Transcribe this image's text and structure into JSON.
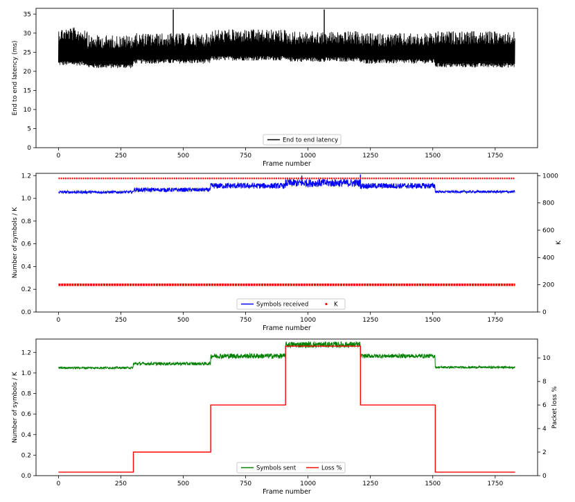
{
  "chart_data": [
    {
      "type": "line",
      "title": "",
      "xlabel": "Frame number",
      "ylabel": "End to end latency (ms)",
      "xlim": [
        -90,
        1920
      ],
      "ylim": [
        0,
        36.5
      ],
      "x_ticks": [
        0,
        250,
        500,
        750,
        1000,
        1250,
        1500,
        1750
      ],
      "y_ticks": [
        0,
        5,
        10,
        15,
        20,
        25,
        30,
        35
      ],
      "legend_position": "bottom-center",
      "series": [
        {
          "name": "End to end latency",
          "color": "#000000",
          "segments": [
            {
              "from": 0,
              "to": 115,
              "low": 21.5,
              "high": 31.5
            },
            {
              "from": 115,
              "to": 300,
              "low": 20.8,
              "high": 29.5
            },
            {
              "from": 300,
              "to": 610,
              "low": 22.0,
              "high": 30.0
            },
            {
              "from": 610,
              "to": 910,
              "low": 22.8,
              "high": 31.0
            },
            {
              "from": 910,
              "to": 1210,
              "low": 22.5,
              "high": 30.5
            },
            {
              "from": 1210,
              "to": 1510,
              "low": 22.0,
              "high": 30.0
            },
            {
              "from": 1510,
              "to": 1830,
              "low": 21.0,
              "high": 30.5
            }
          ],
          "spikes": [
            {
              "frame": 460,
              "value": 36.2
            },
            {
              "frame": 1065,
              "value": 36.2
            }
          ]
        }
      ]
    },
    {
      "type": "line",
      "title": "",
      "xlabel": "Frame number",
      "ylabel": "Number of symbols / K",
      "ylabel_right": "K",
      "xlim": [
        -90,
        1920
      ],
      "ylim": [
        0,
        1.22
      ],
      "ylim_right": [
        0,
        1017
      ],
      "x_ticks": [
        0,
        250,
        500,
        750,
        1000,
        1250,
        1500,
        1750
      ],
      "y_ticks": [
        0.0,
        0.2,
        0.4,
        0.6,
        0.8,
        1.0,
        1.2
      ],
      "y_ticks_right": [
        0,
        200,
        400,
        600,
        800,
        1000
      ],
      "legend_position": "bottom-center",
      "series": [
        {
          "name": "Symbols received",
          "color": "#0000ff",
          "segments": [
            {
              "from": 0,
              "to": 300,
              "center": 1.055,
              "amp": 0.012
            },
            {
              "from": 300,
              "to": 610,
              "center": 1.075,
              "amp": 0.018
            },
            {
              "from": 610,
              "to": 910,
              "center": 1.11,
              "amp": 0.025
            },
            {
              "from": 910,
              "to": 1210,
              "center": 1.135,
              "amp": 0.035
            },
            {
              "from": 1210,
              "to": 1510,
              "center": 1.11,
              "amp": 0.025
            },
            {
              "from": 1510,
              "to": 1830,
              "center": 1.058,
              "amp": 0.01
            }
          ],
          "spikes": [
            {
              "frame": 975,
              "value": 1.2
            },
            {
              "frame": 1210,
              "value": 1.21
            }
          ]
        },
        {
          "name": "K",
          "color": "#ff0000",
          "axis": "right",
          "rows": [
            980,
            200
          ]
        }
      ]
    },
    {
      "type": "line",
      "title": "",
      "xlabel": "Frame number",
      "ylabel": "Number of symbols / K",
      "ylabel_right": "Packet loss %",
      "xlim": [
        -90,
        1920
      ],
      "ylim": [
        0,
        1.33
      ],
      "ylim_right": [
        0,
        11.6
      ],
      "x_ticks": [
        0,
        250,
        500,
        750,
        1000,
        1250,
        1500,
        1750
      ],
      "y_ticks": [
        0.0,
        0.2,
        0.4,
        0.6,
        0.8,
        1.0,
        1.2
      ],
      "y_ticks_right": [
        0,
        2,
        4,
        6,
        8,
        10
      ],
      "legend_position": "bottom-center",
      "series": [
        {
          "name": "Symbols sent",
          "color": "#008000",
          "segments": [
            {
              "from": 0,
              "to": 300,
              "center": 1.05,
              "amp": 0.01
            },
            {
              "from": 300,
              "to": 610,
              "center": 1.09,
              "amp": 0.015
            },
            {
              "from": 610,
              "to": 910,
              "center": 1.165,
              "amp": 0.025
            },
            {
              "from": 910,
              "to": 1210,
              "center": 1.275,
              "amp": 0.03
            },
            {
              "from": 1210,
              "to": 1510,
              "center": 1.165,
              "amp": 0.02
            },
            {
              "from": 1510,
              "to": 1830,
              "center": 1.055,
              "amp": 0.01
            }
          ]
        },
        {
          "name": "Loss %",
          "color": "#ff0000",
          "axis": "right",
          "steps": [
            {
              "from": 0,
              "to": 300,
              "value": 0.3
            },
            {
              "from": 300,
              "to": 610,
              "value": 2.0
            },
            {
              "from": 610,
              "to": 910,
              "value": 6.0
            },
            {
              "from": 910,
              "to": 1210,
              "value": 11.0
            },
            {
              "from": 1210,
              "to": 1510,
              "value": 6.0
            },
            {
              "from": 1510,
              "to": 1830,
              "value": 0.3
            }
          ]
        }
      ]
    }
  ]
}
